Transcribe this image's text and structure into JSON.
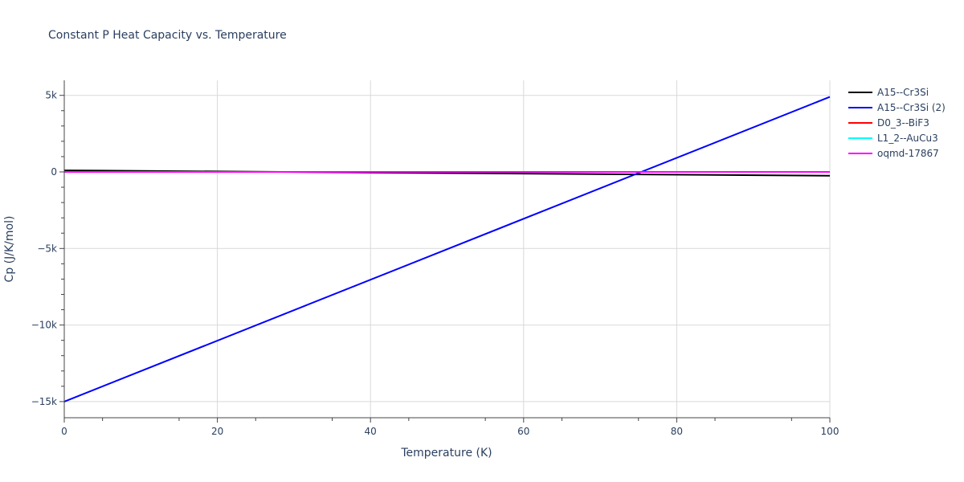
{
  "chart_data": {
    "type": "line",
    "title": "Constant P Heat Capacity vs. Temperature",
    "xlabel": "Temperature (K)",
    "ylabel": "Cp (J/K/mol)",
    "xlim": [
      0,
      100
    ],
    "ylim": [
      -16000,
      6000
    ],
    "x_ticks": [
      "0",
      "20",
      "40",
      "60",
      "80",
      "100"
    ],
    "y_ticks": [
      "5k",
      "0",
      "−5k",
      "−10k",
      "−15k"
    ],
    "grid": true,
    "legend_position": "right",
    "x": [
      0,
      100
    ],
    "series": [
      {
        "name": "A15--Cr3Si",
        "color": "#000000",
        "values": [
          100,
          -250
        ]
      },
      {
        "name": "A15--Cr3Si (2)",
        "color": "#0000ff",
        "values": [
          -15000,
          4900
        ]
      },
      {
        "name": "D0_3--BiF3",
        "color": "#ff0000",
        "values": [
          0,
          0
        ]
      },
      {
        "name": "L1_2--AuCu3",
        "color": "#00ffff",
        "values": [
          0,
          0
        ]
      },
      {
        "name": "oqmd-17867",
        "color": "#ff00ff",
        "values": [
          0,
          0
        ]
      }
    ]
  }
}
